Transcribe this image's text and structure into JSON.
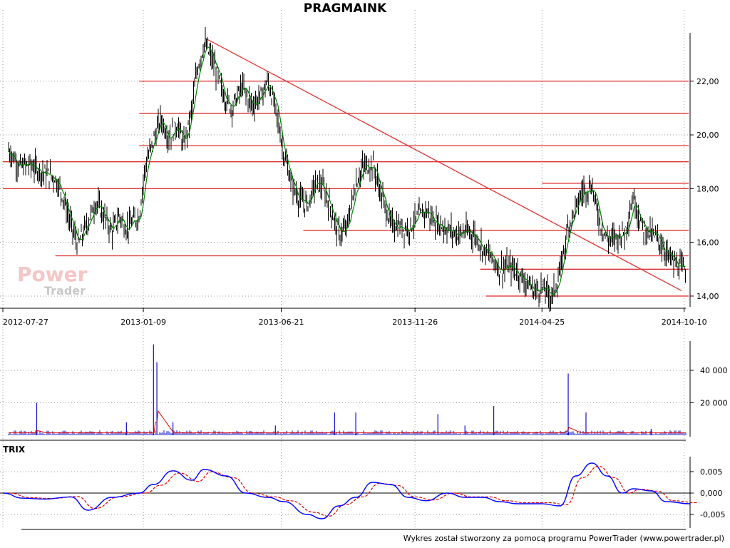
{
  "title": "PRAGMAINK",
  "footer": "Wykres został stworzony za pomocą programu PowerTrader (www.powertrader.pl)",
  "watermark": {
    "line1": "Power",
    "line2": "Trader"
  },
  "trix_label": "TRIX",
  "colors": {
    "hline": "#e03030",
    "price": "#000000",
    "ma": "#008000",
    "volume": "#1010c8",
    "volume_ma": "#e00000",
    "trix": "#0000ff",
    "trix_signal": "#e00000"
  },
  "chart_data": [
    {
      "type": "line",
      "name": "price",
      "title": "PRAGMAINK",
      "x_ticks": [
        "2012-07-27",
        "2013-01-09",
        "2013-06-21",
        "2013-11-26",
        "2014-04-25",
        "2014-10-10"
      ],
      "x_range": [
        "2012-07-27",
        "2014-10-17"
      ],
      "y_ticks": [
        "14,00",
        "16,00",
        "18,00",
        "20,00",
        "22,00"
      ],
      "ylim": [
        13.6,
        23.8
      ],
      "grid": true,
      "points": [
        [
          "2012-07-27",
          19.7
        ],
        [
          "2012-08-06",
          19.3
        ],
        [
          "2012-08-16",
          18.8
        ],
        [
          "2012-08-27",
          18.9
        ],
        [
          "2012-09-07",
          18.7
        ],
        [
          "2012-09-18",
          18.5
        ],
        [
          "2012-09-27",
          18.4
        ],
        [
          "2012-10-05",
          17.8
        ],
        [
          "2012-10-15",
          16.7
        ],
        [
          "2012-10-24",
          15.9
        ],
        [
          "2012-11-05",
          16.8
        ],
        [
          "2012-11-14",
          17.5
        ],
        [
          "2012-11-23",
          17.0
        ],
        [
          "2012-12-03",
          16.4
        ],
        [
          "2012-12-12",
          17.0
        ],
        [
          "2012-12-20",
          16.5
        ],
        [
          "2013-01-04",
          17.0
        ],
        [
          "2013-01-11",
          18.8
        ],
        [
          "2013-01-21",
          19.8
        ],
        [
          "2013-01-30",
          20.6
        ],
        [
          "2013-02-08",
          19.9
        ],
        [
          "2013-02-18",
          20.4
        ],
        [
          "2013-02-26",
          19.6
        ],
        [
          "2013-03-07",
          20.9
        ],
        [
          "2013-03-14",
          22.5
        ],
        [
          "2013-03-22",
          23.4
        ],
        [
          "2013-04-03",
          22.6
        ],
        [
          "2013-04-12",
          21.6
        ],
        [
          "2013-04-23",
          21.0
        ],
        [
          "2013-05-06",
          21.8
        ],
        [
          "2013-05-17",
          21.1
        ],
        [
          "2013-05-27",
          21.4
        ],
        [
          "2013-06-05",
          22.0
        ],
        [
          "2013-06-14",
          21.0
        ],
        [
          "2013-06-24",
          19.3
        ],
        [
          "2013-07-03",
          18.2
        ],
        [
          "2013-07-12",
          17.6
        ],
        [
          "2013-07-22",
          17.4
        ],
        [
          "2013-07-31",
          18.2
        ],
        [
          "2013-08-08",
          18.1
        ],
        [
          "2013-08-19",
          17.2
        ],
        [
          "2013-08-28",
          16.3
        ],
        [
          "2013-09-06",
          16.5
        ],
        [
          "2013-09-17",
          18.2
        ],
        [
          "2013-09-26",
          18.8
        ],
        [
          "2013-10-07",
          18.9
        ],
        [
          "2013-10-16",
          17.9
        ],
        [
          "2013-10-28",
          16.7
        ],
        [
          "2013-11-07",
          16.6
        ],
        [
          "2013-11-18",
          16.5
        ],
        [
          "2013-11-28",
          16.9
        ],
        [
          "2013-12-09",
          17.2
        ],
        [
          "2013-12-18",
          16.8
        ],
        [
          "2014-01-03",
          16.5
        ],
        [
          "2014-01-14",
          16.3
        ],
        [
          "2014-01-24",
          16.4
        ],
        [
          "2014-02-04",
          16.3
        ],
        [
          "2014-02-14",
          15.8
        ],
        [
          "2014-02-25",
          15.4
        ],
        [
          "2014-03-06",
          15.0
        ],
        [
          "2014-03-17",
          15.1
        ],
        [
          "2014-03-27",
          14.9
        ],
        [
          "2014-04-07",
          14.5
        ],
        [
          "2014-04-16",
          14.2
        ],
        [
          "2014-04-25",
          14.3
        ],
        [
          "2014-05-07",
          14.0
        ],
        [
          "2014-05-16",
          14.8
        ],
        [
          "2014-05-26",
          16.6
        ],
        [
          "2014-06-04",
          17.3
        ],
        [
          "2014-06-12",
          17.9
        ],
        [
          "2014-06-23",
          18.1
        ],
        [
          "2014-07-02",
          16.8
        ],
        [
          "2014-07-11",
          16.1
        ],
        [
          "2014-07-22",
          16.2
        ],
        [
          "2014-08-01",
          16.4
        ],
        [
          "2014-08-11",
          17.7
        ],
        [
          "2014-08-21",
          16.6
        ],
        [
          "2014-09-01",
          16.3
        ],
        [
          "2014-09-10",
          16.1
        ],
        [
          "2014-09-19",
          15.6
        ],
        [
          "2014-09-29",
          15.2
        ],
        [
          "2014-10-08",
          15.0
        ],
        [
          "2014-10-17",
          14.9
        ]
      ],
      "horizontal_levels": [
        {
          "y": 22.0,
          "from": "2013-01-04",
          "to": "2014-10-17"
        },
        {
          "y": 20.8,
          "from": "2013-01-04",
          "to": "2014-10-17"
        },
        {
          "y": 19.6,
          "from": "2013-01-04",
          "to": "2014-10-17"
        },
        {
          "y": 19.0,
          "from": "2012-07-27",
          "to": "2014-10-17"
        },
        {
          "y": 18.0,
          "from": "2012-07-27",
          "to": "2014-10-17"
        },
        {
          "y": 18.2,
          "from": "2014-04-25",
          "to": "2014-10-17"
        },
        {
          "y": 16.45,
          "from": "2013-07-17",
          "to": "2014-10-17"
        },
        {
          "y": 15.5,
          "from": "2012-09-27",
          "to": "2014-10-17"
        },
        {
          "y": 15.0,
          "from": "2014-02-11",
          "to": "2014-10-17"
        },
        {
          "y": 14.0,
          "from": "2014-02-18",
          "to": "2014-10-17"
        }
      ],
      "trend_line": {
        "from": [
          "2013-03-23",
          23.6
        ],
        "to": [
          "2014-10-07",
          14.2
        ]
      }
    },
    {
      "type": "bar",
      "name": "volume",
      "y_ticks": [
        "20 000",
        "40 000"
      ],
      "ylim": [
        0,
        58000
      ],
      "grid": true,
      "spikes": [
        [
          "2012-09-05",
          20000
        ],
        [
          "2012-12-20",
          8000
        ],
        [
          "2013-01-21",
          56000
        ],
        [
          "2013-01-25",
          45000
        ],
        [
          "2013-02-13",
          8000
        ],
        [
          "2013-06-14",
          6000
        ],
        [
          "2013-08-23",
          14000
        ],
        [
          "2013-09-17",
          14000
        ],
        [
          "2013-12-23",
          13000
        ],
        [
          "2014-01-24",
          6000
        ],
        [
          "2014-02-27",
          18000
        ],
        [
          "2014-05-26",
          38000
        ],
        [
          "2014-06-16",
          14000
        ],
        [
          "2014-09-01",
          4000
        ]
      ],
      "baseline_volume": 1500,
      "volume_ma_peaks": [
        [
          "2012-09-05",
          3000
        ],
        [
          "2013-01-25",
          16000
        ],
        [
          "2014-05-26",
          5000
        ]
      ]
    },
    {
      "type": "line",
      "name": "TRIX",
      "title": "TRIX",
      "y_ticks": [
        "-0,005",
        "0,000",
        "0,005"
      ],
      "ylim": [
        -0.0085,
        0.0085
      ],
      "zero_line": true,
      "series": [
        {
          "name": "TRIX",
          "points": [
            [
              "2012-07-27",
              0.0
            ],
            [
              "2012-08-20",
              -0.0012
            ],
            [
              "2012-09-14",
              -0.0014
            ],
            [
              "2012-10-15",
              -0.0009
            ],
            [
              "2012-11-05",
              -0.004
            ],
            [
              "2012-12-03",
              -0.001
            ],
            [
              "2013-01-04",
              0.0
            ],
            [
              "2013-01-21",
              0.002
            ],
            [
              "2013-02-13",
              0.0052
            ],
            [
              "2013-03-07",
              0.003
            ],
            [
              "2013-03-22",
              0.0055
            ],
            [
              "2013-04-17",
              0.004
            ],
            [
              "2013-05-10",
              0.0
            ],
            [
              "2013-06-05",
              -0.001
            ],
            [
              "2013-06-24",
              -0.002
            ],
            [
              "2013-07-22",
              -0.005
            ],
            [
              "2013-08-08",
              -0.006
            ],
            [
              "2013-08-28",
              -0.003
            ],
            [
              "2013-09-17",
              -0.001
            ],
            [
              "2013-10-07",
              0.0025
            ],
            [
              "2013-10-28",
              0.002
            ],
            [
              "2013-11-18",
              -0.001
            ],
            [
              "2013-12-09",
              -0.0018
            ],
            [
              "2014-01-03",
              0.0
            ],
            [
              "2014-01-24",
              -0.001
            ],
            [
              "2014-02-14",
              -0.001
            ],
            [
              "2014-03-06",
              -0.002
            ],
            [
              "2014-03-27",
              -0.0025
            ],
            [
              "2014-04-25",
              -0.0025
            ],
            [
              "2014-05-16",
              -0.003
            ],
            [
              "2014-06-04",
              0.004
            ],
            [
              "2014-06-23",
              0.007
            ],
            [
              "2014-07-11",
              0.004
            ],
            [
              "2014-07-29",
              0.0
            ],
            [
              "2014-08-11",
              0.001
            ],
            [
              "2014-09-01",
              0.0005
            ],
            [
              "2014-09-19",
              -0.002
            ],
            [
              "2014-10-17",
              -0.0025
            ]
          ]
        },
        {
          "name": "signal",
          "lag_days": 8
        }
      ]
    }
  ]
}
